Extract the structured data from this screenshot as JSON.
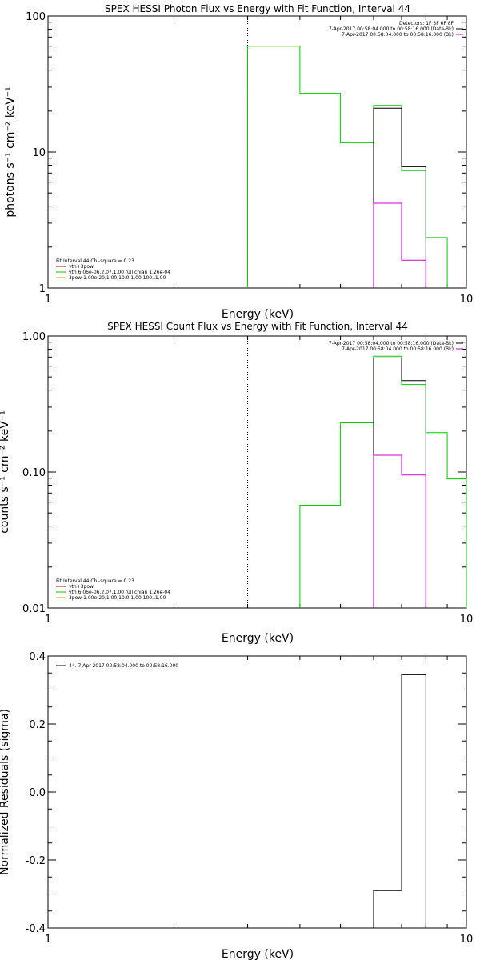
{
  "chart_data": [
    {
      "type": "line",
      "id": "photon",
      "title": "SPEX HESSI Photon Flux vs Energy with Fit Function, Interval 44",
      "xlabel": "Energy (keV)",
      "ylabel": "photons s⁻¹ cm⁻² keV⁻¹",
      "xscale": "log",
      "yscale": "log",
      "xlim": [
        1,
        10
      ],
      "ylim": [
        1,
        100
      ],
      "xticks": [
        {
          "v": 1,
          "label": "1"
        },
        {
          "v": 10,
          "label": "10"
        }
      ],
      "yticks": [
        {
          "v": 1,
          "label": "1"
        },
        {
          "v": 10,
          "label": "10"
        },
        {
          "v": 100,
          "label": "100"
        }
      ],
      "vline": 3.0,
      "legend_right": [
        {
          "text": "Detectors: 1F 3F 6F 8F",
          "color": ""
        },
        {
          "text": "7-Apr-2017 00:58:04.000 to 00:58:16.000 (Data-Bk)",
          "color": "#000000"
        },
        {
          "text": "7-Apr-2017 00:58:04.000 to 00:58:16.000 (Bk)",
          "color": "#cc00cc"
        }
      ],
      "legend_left": [
        {
          "text": "Fit Interval 44    Chi-square = 0.23",
          "color": ""
        },
        {
          "text": "vth+3pow",
          "color": "#cc0000"
        },
        {
          "text": "vth 6.06e-06,2.07,1.00  full chian 1.26e-04",
          "color": "#00cc00"
        },
        {
          "text": "3pow 1.00e-20,1.00,10.0,1.00,100.,1.00",
          "color": "#ccaa00"
        }
      ],
      "series": [
        {
          "color": "#00cc00",
          "steps": [
            {
              "x0": 3.0,
              "x1": 4.0,
              "y": 60
            },
            {
              "x0": 4.0,
              "x1": 5.0,
              "y": 27
            },
            {
              "x0": 5.0,
              "x1": 6.0,
              "y": 11.7
            },
            {
              "x0": 6.0,
              "x1": 7.0,
              "y": 22
            },
            {
              "x0": 7.0,
              "x1": 8.0,
              "y": 7.3
            },
            {
              "x0": 8.0,
              "x1": 9.0,
              "y": 2.35
            }
          ]
        },
        {
          "color": "#000000",
          "steps": [
            {
              "x0": 6.0,
              "x1": 7.0,
              "y": 21
            },
            {
              "x0": 7.0,
              "x1": 8.0,
              "y": 7.8
            }
          ]
        },
        {
          "color": "#cc00cc",
          "steps": [
            {
              "x0": 6.0,
              "x1": 7.0,
              "y": 4.2
            },
            {
              "x0": 7.0,
              "x1": 8.0,
              "y": 1.6
            }
          ]
        }
      ]
    },
    {
      "type": "line",
      "id": "count",
      "title": "SPEX HESSI Count Flux vs Energy with Fit Function, Interval 44",
      "xlabel": "Energy (keV)",
      "ylabel": "counts s⁻¹ cm⁻² keV⁻¹",
      "xscale": "log",
      "yscale": "log",
      "xlim": [
        1,
        10
      ],
      "ylim": [
        0.01,
        1
      ],
      "xticks": [
        {
          "v": 1,
          "label": "1"
        },
        {
          "v": 10,
          "label": "10"
        }
      ],
      "yticks": [
        {
          "v": 0.01,
          "label": "0.01"
        },
        {
          "v": 0.1,
          "label": "0.10"
        },
        {
          "v": 1,
          "label": "1.00"
        }
      ],
      "vline": 3.0,
      "legend_right": [
        {
          "text": "7-Apr-2017 00:58:04.000 to 00:58:16.000 (Data-Bk)",
          "color": "#000000"
        },
        {
          "text": "7-Apr-2017 00:58:04.000 to 00:58:16.000 (Bk)",
          "color": "#cc00cc"
        }
      ],
      "legend_left": [
        {
          "text": "Fit Interval 44    Chi-square = 0.23",
          "color": ""
        },
        {
          "text": "vth+3pow",
          "color": "#cc0000"
        },
        {
          "text": "vth 6.06e-06,2.07,1.00  full chian 1.26e-04",
          "color": "#00cc00"
        },
        {
          "text": "3pow 1.00e-20,1.00,10.0,1.00,100.,1.00",
          "color": "#ccaa00"
        }
      ],
      "series": [
        {
          "color": "#00cc00",
          "steps": [
            {
              "x0": 4.0,
              "x1": 5.0,
              "y": 0.057
            },
            {
              "x0": 5.0,
              "x1": 6.0,
              "y": 0.23
            },
            {
              "x0": 6.0,
              "x1": 7.0,
              "y": 0.71
            },
            {
              "x0": 7.0,
              "x1": 8.0,
              "y": 0.44
            },
            {
              "x0": 8.0,
              "x1": 9.0,
              "y": 0.195
            },
            {
              "x0": 9.0,
              "x1": 10.0,
              "y": 0.089
            }
          ]
        },
        {
          "color": "#000000",
          "steps": [
            {
              "x0": 6.0,
              "x1": 7.0,
              "y": 0.69
            },
            {
              "x0": 7.0,
              "x1": 8.0,
              "y": 0.47
            }
          ]
        },
        {
          "color": "#cc00cc",
          "steps": [
            {
              "x0": 6.0,
              "x1": 7.0,
              "y": 0.133
            },
            {
              "x0": 7.0,
              "x1": 8.0,
              "y": 0.095
            }
          ]
        }
      ]
    },
    {
      "type": "line",
      "id": "resid",
      "title": "",
      "xlabel": "Energy (keV)",
      "ylabel": "Normalized Residuals (sigma)",
      "xscale": "log",
      "yscale": "linear",
      "xlim": [
        1,
        10
      ],
      "ylim": [
        -0.4,
        0.4
      ],
      "xticks": [
        {
          "v": 1,
          "label": "1"
        },
        {
          "v": 10,
          "label": "10"
        }
      ],
      "yticks": [
        {
          "v": -0.4,
          "label": "-0.4"
        },
        {
          "v": -0.2,
          "label": "-0.2"
        },
        {
          "v": 0,
          "label": "0.0"
        },
        {
          "v": 0.2,
          "label": "0.2"
        },
        {
          "v": 0.4,
          "label": "0.4"
        }
      ],
      "vline": null,
      "legend_right": [],
      "legend_left": [
        {
          "text": "44.  7-Apr-2017 00:58:04.000 to 00:58:16.000",
          "color": "#000000"
        }
      ],
      "series": [
        {
          "color": "#000000",
          "steps": [
            {
              "x0": 6.0,
              "x1": 7.0,
              "y": -0.29
            },
            {
              "x0": 7.0,
              "x1": 8.0,
              "y": 0.345
            }
          ]
        }
      ]
    }
  ]
}
